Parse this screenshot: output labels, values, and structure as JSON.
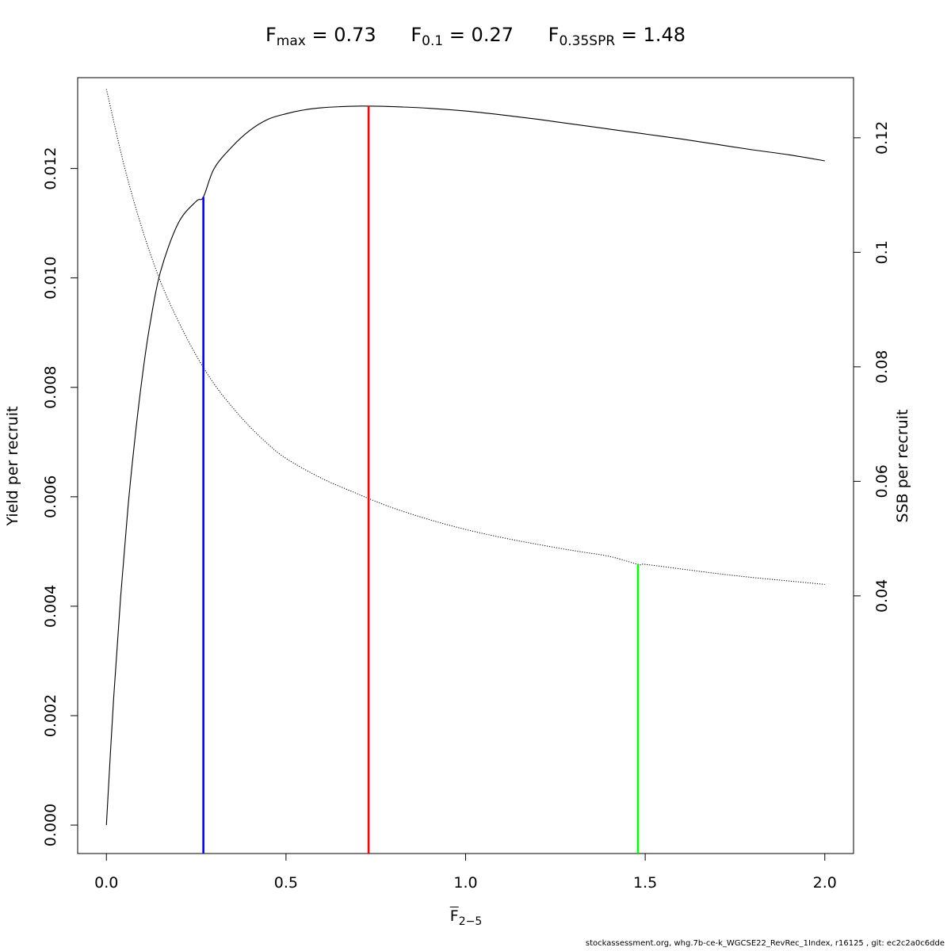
{
  "chart_data": {
    "type": "line",
    "title": {
      "parts": [
        {
          "name": "F",
          "sub": "max",
          "value": "= 0.73"
        },
        {
          "name": "F",
          "sub": "0.1",
          "value": "= 0.27"
        },
        {
          "name": "F",
          "sub": "0.35SPR",
          "value": "= 1.48"
        }
      ]
    },
    "xlabel": {
      "base": "F",
      "sub": "2−5"
    },
    "ylabel_left": "Yield per recruit",
    "ylabel_right": "SSB per recruit",
    "xlim": [
      -0.08,
      2.08
    ],
    "ylim_left": [
      -0.00052,
      0.01366
    ],
    "ylim_right": [
      -0.005,
      0.1305
    ],
    "x_ticks": [
      "0.0",
      "0.5",
      "1.0",
      "1.5",
      "2.0"
    ],
    "y_left_ticks": [
      "0.000",
      "0.002",
      "0.004",
      "0.006",
      "0.008",
      "0.010",
      "0.012"
    ],
    "y_right_ticks": [
      "0.04",
      "0.06",
      "0.08",
      "0.1",
      "0.12"
    ],
    "series": [
      {
        "axis": "left",
        "style": "solid",
        "color": "#000000",
        "x": [
          0,
          0.02,
          0.04,
          0.06,
          0.08,
          0.1,
          0.12,
          0.15,
          0.2,
          0.25,
          0.27,
          0.3,
          0.35,
          0.4,
          0.45,
          0.5,
          0.55,
          0.6,
          0.65,
          0.7,
          0.73,
          0.8,
          0.9,
          1.0,
          1.1,
          1.2,
          1.3,
          1.4,
          1.5,
          1.6,
          1.7,
          1.8,
          1.9,
          2.0
        ],
        "y": [
          0,
          0.0023,
          0.0042,
          0.0058,
          0.0071,
          0.0082,
          0.0091,
          0.0101,
          0.011,
          0.0114,
          0.01148,
          0.012,
          0.0124,
          0.0127,
          0.0129,
          0.013,
          0.01307,
          0.01311,
          0.01313,
          0.01314,
          0.01314,
          0.01313,
          0.0131,
          0.01305,
          0.01298,
          0.0129,
          0.01281,
          0.01272,
          0.01263,
          0.01254,
          0.01244,
          0.01234,
          0.01225,
          0.01214
        ]
      },
      {
        "axis": "right",
        "style": "dotted",
        "color": "#000000",
        "x": [
          0,
          0.05,
          0.1,
          0.15,
          0.2,
          0.25,
          0.3,
          0.35,
          0.4,
          0.45,
          0.5,
          0.6,
          0.7,
          0.73,
          0.8,
          0.9,
          1.0,
          1.1,
          1.2,
          1.3,
          1.4,
          1.48,
          1.5,
          1.6,
          1.7,
          1.8,
          1.9,
          2.0
        ],
        "y": [
          0.1285,
          0.115,
          0.104,
          0.095,
          0.088,
          0.082,
          0.077,
          0.073,
          0.0695,
          0.0665,
          0.064,
          0.0605,
          0.0578,
          0.057,
          0.0553,
          0.0533,
          0.0516,
          0.0502,
          0.049,
          0.0479,
          0.0469,
          0.0455,
          0.0455,
          0.0447,
          0.0439,
          0.0432,
          0.0426,
          0.042
        ]
      }
    ],
    "reference_lines": [
      {
        "label": "F0.1",
        "x": 0.27,
        "axis": "left",
        "top": 0.01148,
        "color": "#0000ff"
      },
      {
        "label": "Fmax",
        "x": 0.73,
        "axis": "left",
        "top": 0.01314,
        "color": "#ff0000"
      },
      {
        "label": "F0.35SPR",
        "x": 1.48,
        "axis": "right",
        "top": 0.0455,
        "color": "#00ff00"
      }
    ],
    "grid": false,
    "legend": "none"
  },
  "footer": "stockassessment.org, whg.7b-ce-k_WGCSE22_RevRec_1Index, r16125 , git: ec2c2a0c6dde"
}
